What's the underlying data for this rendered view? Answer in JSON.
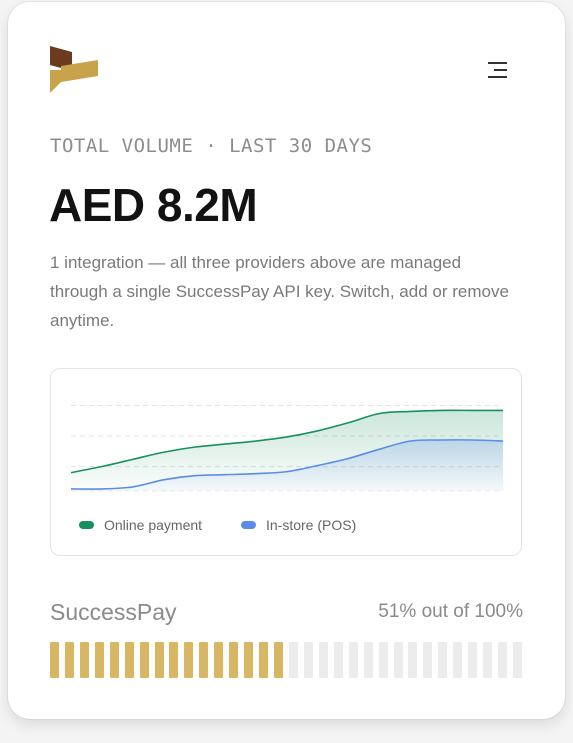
{
  "header": {
    "logo_icon": "brand-logo-icon",
    "menu_icon": "menu-icon",
    "logo_colors": {
      "top": "#6b3a1f",
      "bottom": "#c9a34a"
    }
  },
  "summary": {
    "eyebrow": "TOTAL VOLUME · LAST 30 DAYS",
    "amount": "AED 8.2M",
    "description": "1 integration — all three providers above are managed through a single SuccessPay API key. Switch, add or remove anytime."
  },
  "chart_data": {
    "type": "area",
    "x": [
      0,
      1,
      2,
      3,
      4,
      5,
      6,
      7,
      8,
      9,
      10,
      11,
      12,
      13,
      14
    ],
    "series": [
      {
        "name": "Online payment",
        "color": "#16915c",
        "values": [
          0.18,
          0.24,
          0.31,
          0.38,
          0.43,
          0.46,
          0.49,
          0.53,
          0.59,
          0.67,
          0.76,
          0.78,
          0.79,
          0.79,
          0.79
        ]
      },
      {
        "name": "In-store (POS)",
        "color": "#5b8de8",
        "values": [
          0.02,
          0.02,
          0.04,
          0.11,
          0.15,
          0.16,
          0.17,
          0.19,
          0.25,
          0.32,
          0.41,
          0.49,
          0.5,
          0.5,
          0.49
        ]
      }
    ],
    "ylim": [
      0,
      1
    ],
    "grid": true,
    "legend": "bottom-left"
  },
  "provider": {
    "name": "SuccessPay",
    "progress_text": "51% out of 100%",
    "progress": 0.51,
    "segments": 32,
    "filled_color": "#d7b764",
    "empty_color": "#ececec"
  }
}
